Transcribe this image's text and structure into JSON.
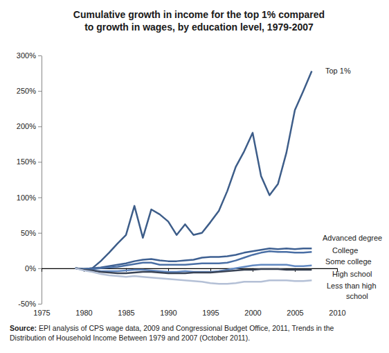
{
  "chart_data": {
    "type": "line",
    "title": "Cumulative growth in income for the top 1% compared to growth in wages, by education level, 1979-2007",
    "source_label": "Source:",
    "source": "EPI analysis of CPS wage data, 2009 and Congressional Budget Office, 2011, Trends in the Distribution of Household Income Between 1979 and 2007 (October 2011).",
    "x": [
      1979,
      1980,
      1981,
      1982,
      1983,
      1984,
      1985,
      1986,
      1987,
      1988,
      1989,
      1990,
      1991,
      1992,
      1993,
      1994,
      1995,
      1996,
      1997,
      1998,
      1999,
      2000,
      2001,
      2002,
      2003,
      2004,
      2005,
      2006,
      2007
    ],
    "series": [
      {
        "name": "Top 1%",
        "color": "#3d5d89",
        "values": [
          0,
          -1,
          0,
          10,
          22,
          35,
          47,
          88,
          43,
          83,
          76,
          66,
          47,
          62,
          47,
          50,
          65,
          81,
          109,
          143,
          165,
          191,
          130,
          103,
          119,
          163,
          223,
          250,
          278
        ]
      },
      {
        "name": "Advanced degree",
        "color": "#3e6092",
        "values": [
          0,
          -1,
          0,
          1,
          3,
          5,
          7,
          10,
          12,
          13,
          11,
          10,
          10,
          11,
          12,
          15,
          16,
          16,
          17,
          19,
          22,
          24,
          26,
          28,
          27,
          28,
          27,
          28,
          28
        ]
      },
      {
        "name": "College",
        "color": "#4a6fa5",
        "values": [
          0,
          -1,
          -1,
          0,
          1,
          2,
          4,
          6,
          8,
          8,
          5,
          5,
          5,
          5,
          6,
          7,
          7,
          7,
          8,
          11,
          15,
          19,
          22,
          24,
          23,
          23,
          22,
          22,
          23
        ]
      },
      {
        "name": "Some college",
        "color": "#6289c2",
        "values": [
          0,
          -2,
          -3,
          -4,
          -4,
          -4,
          -3,
          -2,
          -2,
          -3,
          -4,
          -5,
          -5,
          -4,
          -5,
          -5,
          -5,
          -4,
          -2,
          0,
          2,
          4,
          5,
          5,
          5,
          5,
          3,
          3,
          4
        ]
      },
      {
        "name": "High school",
        "color": "#3a4456",
        "values": [
          0,
          -2,
          -3,
          -5,
          -6,
          -7,
          -7,
          -6,
          -5,
          -5,
          -6,
          -7,
          -7,
          -7,
          -6,
          -6,
          -6,
          -5,
          -4,
          -3,
          -2,
          -2,
          -1,
          -1,
          -1,
          -2,
          -2,
          -2,
          -2
        ]
      },
      {
        "name": "Less than high school",
        "color": "#b4c0d6",
        "values": [
          0,
          -3,
          -5,
          -8,
          -10,
          -11,
          -12,
          -11,
          -12,
          -13,
          -14,
          -15,
          -16,
          -17,
          -18,
          -19,
          -21,
          -22,
          -22,
          -21,
          -19,
          -19,
          -19,
          -17,
          -17,
          -17,
          -18,
          -18,
          -17
        ]
      }
    ],
    "xlim": [
      1975,
      2010
    ],
    "xticks": [
      1975,
      1980,
      1985,
      1990,
      1995,
      2000,
      2005,
      2010
    ],
    "ylim": [
      -50,
      300
    ],
    "yticks": [
      {
        "value": -50,
        "label": "-50%"
      },
      {
        "value": 0,
        "label": "0%"
      },
      {
        "value": 50,
        "label": "50%"
      },
      {
        "value": 100,
        "label": "100%"
      },
      {
        "value": 150,
        "label": "150%"
      },
      {
        "value": 200,
        "label": "200%"
      },
      {
        "value": 250,
        "label": "250%"
      },
      {
        "value": 300,
        "label": "300%"
      }
    ],
    "grid": false
  }
}
